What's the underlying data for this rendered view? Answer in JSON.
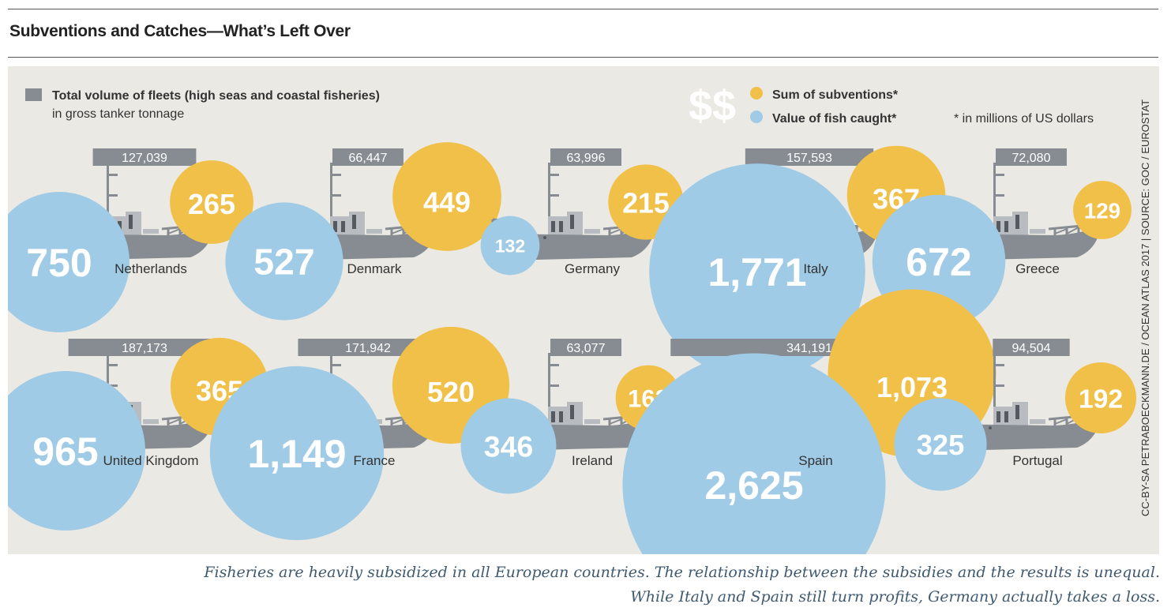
{
  "title": "Subventions and Catches—What’s Left Over",
  "legend": {
    "fleet_label": "Total volume of fleets (high seas and coastal fisheries)",
    "fleet_sublabel": "in gross tanker tonnage",
    "dollar_symbol": "$$",
    "subvention_label": "Sum of subventions*",
    "fish_label": "Value of fish caught*",
    "footnote": "* in millions of US dollars"
  },
  "source": "CC-BY-SA PETRABOECKMANN.DE / OCEAN ATLAS 2017 | SOURCE: GOC / EUROSTAT",
  "caption": [
    "Fisheries are heavily subsidized in all European countries. The relationship between the subsidies and the results is unequal.",
    "While Italy and Spain still turn profits, Germany actually takes a loss."
  ],
  "colors": {
    "fleet": "#868c92",
    "subventions": "#f0c049",
    "fish": "#a0cbe6",
    "panel": "#ebe9e3"
  },
  "chart_data": {
    "type": "bubble",
    "units": {
      "tonnage": "gross tanker tonnage",
      "money": "millions of US dollars"
    },
    "countries": [
      {
        "name": "Netherlands",
        "tonnage": 127039,
        "tonnage_label": "127,039",
        "subventions": 265,
        "subventions_label": "265",
        "fish": 750,
        "fish_label": "750"
      },
      {
        "name": "Denmark",
        "tonnage": 66447,
        "tonnage_label": "66,447",
        "subventions": 449,
        "subventions_label": "449",
        "fish": 527,
        "fish_label": "527"
      },
      {
        "name": "Germany",
        "tonnage": 63996,
        "tonnage_label": "63,996",
        "subventions": 215,
        "subventions_label": "215",
        "fish": 132,
        "fish_label": "132"
      },
      {
        "name": "Italy",
        "tonnage": 157593,
        "tonnage_label": "157,593",
        "subventions": 367,
        "subventions_label": "367",
        "fish": 1771,
        "fish_label": "1,771"
      },
      {
        "name": "Greece",
        "tonnage": 72080,
        "tonnage_label": "72,080",
        "subventions": 129,
        "subventions_label": "129",
        "fish": 672,
        "fish_label": "672"
      },
      {
        "name": "United Kingdom",
        "tonnage": 187173,
        "tonnage_label": "187,173",
        "subventions": 365,
        "subventions_label": "365",
        "fish": 965,
        "fish_label": "965"
      },
      {
        "name": "France",
        "tonnage": 171942,
        "tonnage_label": "171,942",
        "subventions": 520,
        "subventions_label": "520",
        "fish": 1149,
        "fish_label": "1,149"
      },
      {
        "name": "Ireland",
        "tonnage": 63077,
        "tonnage_label": "63,077",
        "subventions": 162,
        "subventions_label": "162",
        "fish": 346,
        "fish_label": "346"
      },
      {
        "name": "Spain",
        "tonnage": 341191,
        "tonnage_label": "341,191",
        "subventions": 1073,
        "subventions_label": "1,073",
        "fish": 2625,
        "fish_label": "2,625"
      },
      {
        "name": "Portugal",
        "tonnage": 94504,
        "tonnage_label": "94,504",
        "subventions": 192,
        "subventions_label": "192",
        "fish": 325,
        "fish_label": "325"
      }
    ]
  }
}
